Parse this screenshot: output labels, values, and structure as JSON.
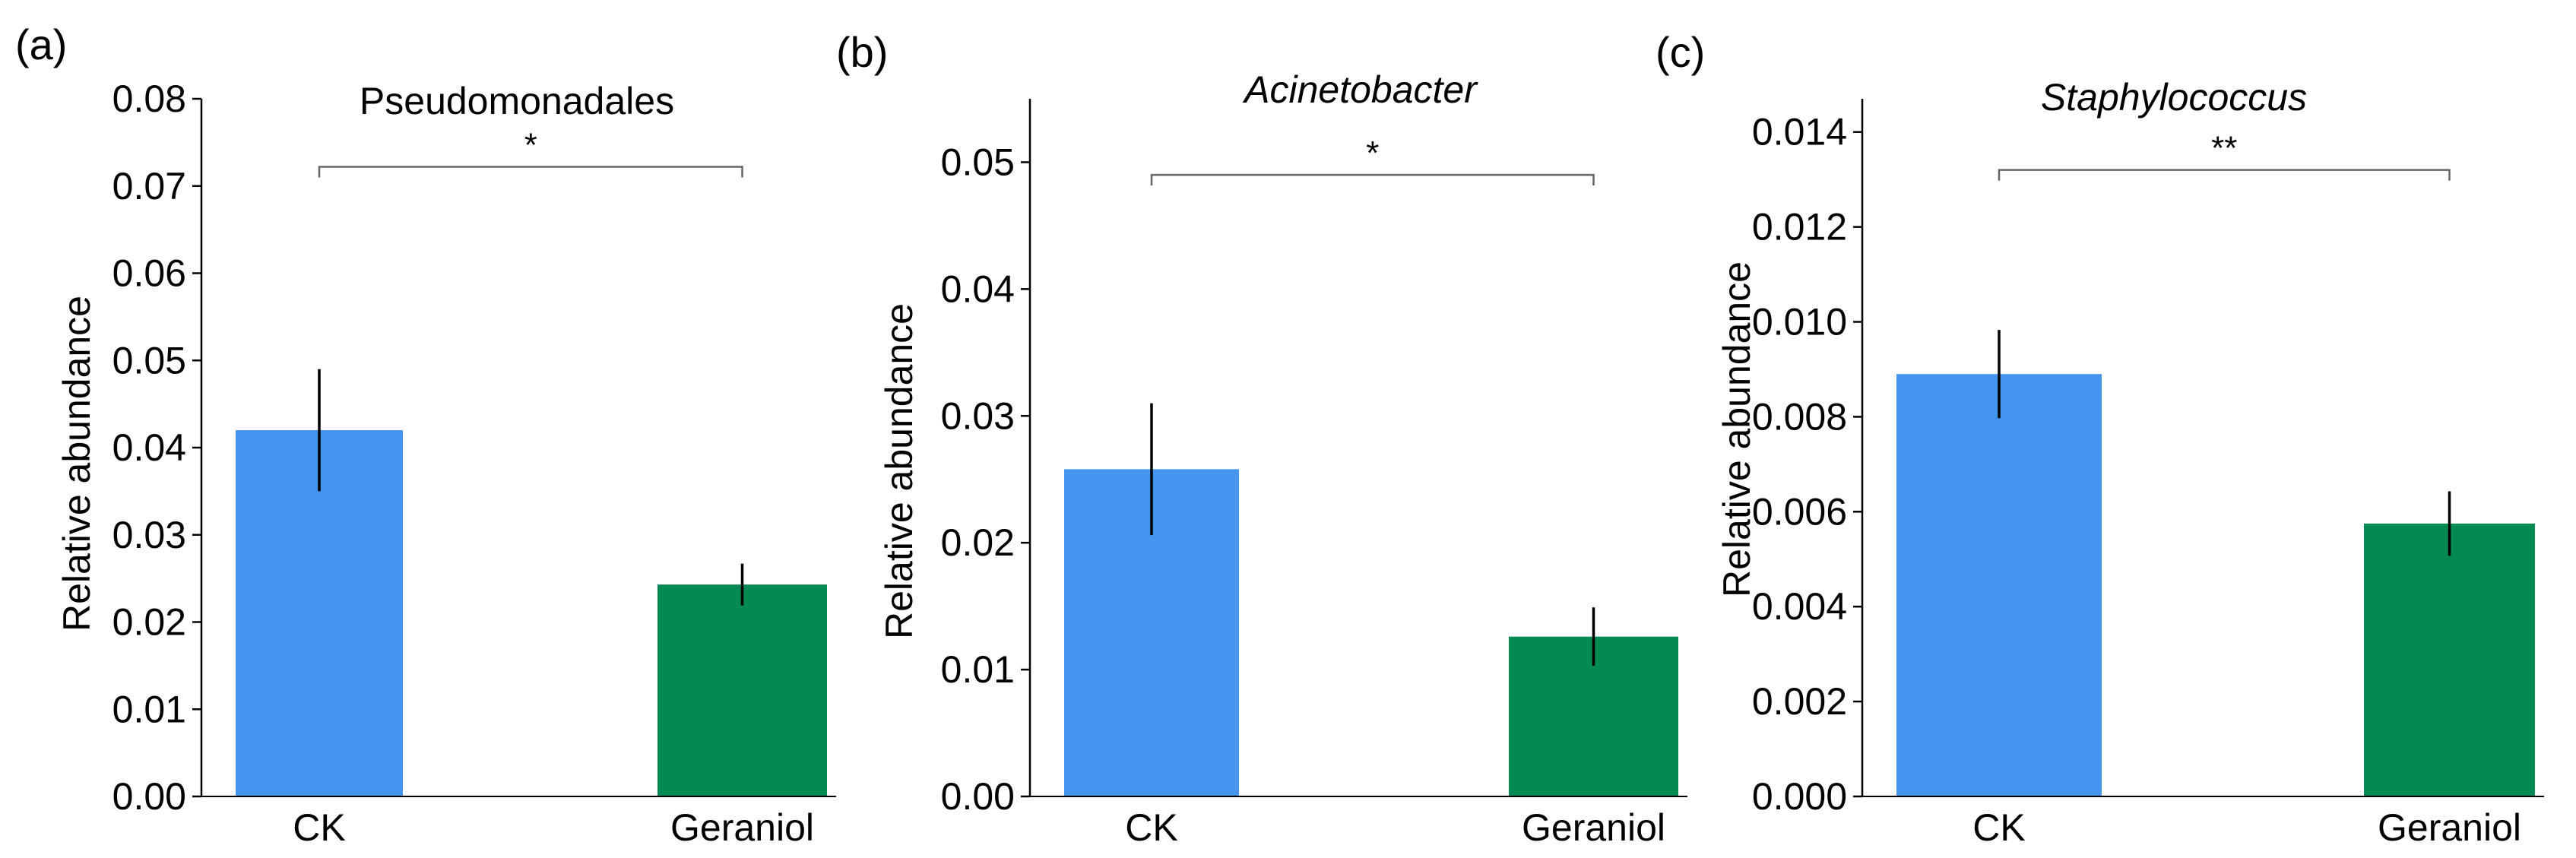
{
  "chart_data": [
    {
      "panel": "(a)",
      "type": "bar",
      "title": "Pseudomonadales",
      "title_italic": false,
      "ylabel": "Relative abundance",
      "xlabel": "",
      "categories": [
        "CK",
        "Geraniol"
      ],
      "values": [
        0.042,
        0.0243
      ],
      "errors": [
        0.007,
        0.0024
      ],
      "colors": [
        "#4595EE",
        "#028A52"
      ],
      "ylim": [
        0,
        0.08
      ],
      "yticks": [
        0.0,
        0.01,
        0.02,
        0.03,
        0.04,
        0.05,
        0.06,
        0.07,
        0.08
      ],
      "ytick_labels": [
        "0.00",
        "0.01",
        "0.02",
        "0.03",
        "0.04",
        "0.05",
        "0.06",
        "0.07",
        "0.08"
      ],
      "significance": "*",
      "bracket_y": 0.0722
    },
    {
      "panel": "(b)",
      "type": "bar",
      "title": "Acinetobacter",
      "title_italic": true,
      "ylabel": "Relative abundance",
      "xlabel": "",
      "categories": [
        "CK",
        "Geraniol"
      ],
      "values": [
        0.0258,
        0.0126
      ],
      "errors": [
        0.0052,
        0.0023
      ],
      "colors": [
        "#4595EE",
        "#028A52"
      ],
      "ylim": [
        0,
        0.055
      ],
      "yticks": [
        0.0,
        0.01,
        0.02,
        0.03,
        0.04,
        0.05
      ],
      "ytick_labels": [
        "0.00",
        "0.01",
        "0.02",
        "0.03",
        "0.04",
        "0.05"
      ],
      "significance": "*",
      "bracket_y": 0.049
    },
    {
      "panel": "(c)",
      "type": "bar",
      "title": "Staphylococcus",
      "title_italic": true,
      "ylabel": "Relative abundance",
      "xlabel": "",
      "categories": [
        "CK",
        "Geraniol"
      ],
      "values": [
        0.0089,
        0.00575
      ],
      "errors": [
        0.00093,
        0.00068
      ],
      "colors": [
        "#4595EE",
        "#028A52"
      ],
      "ylim": [
        0,
        0.0147
      ],
      "yticks": [
        0.0,
        0.002,
        0.004,
        0.006,
        0.008,
        0.01,
        0.012,
        0.014
      ],
      "ytick_labels": [
        "0.000",
        "0.002",
        "0.004",
        "0.006",
        "0.008",
        "0.010",
        "0.012",
        "0.014"
      ],
      "significance": "**",
      "bracket_y": 0.0132
    }
  ]
}
